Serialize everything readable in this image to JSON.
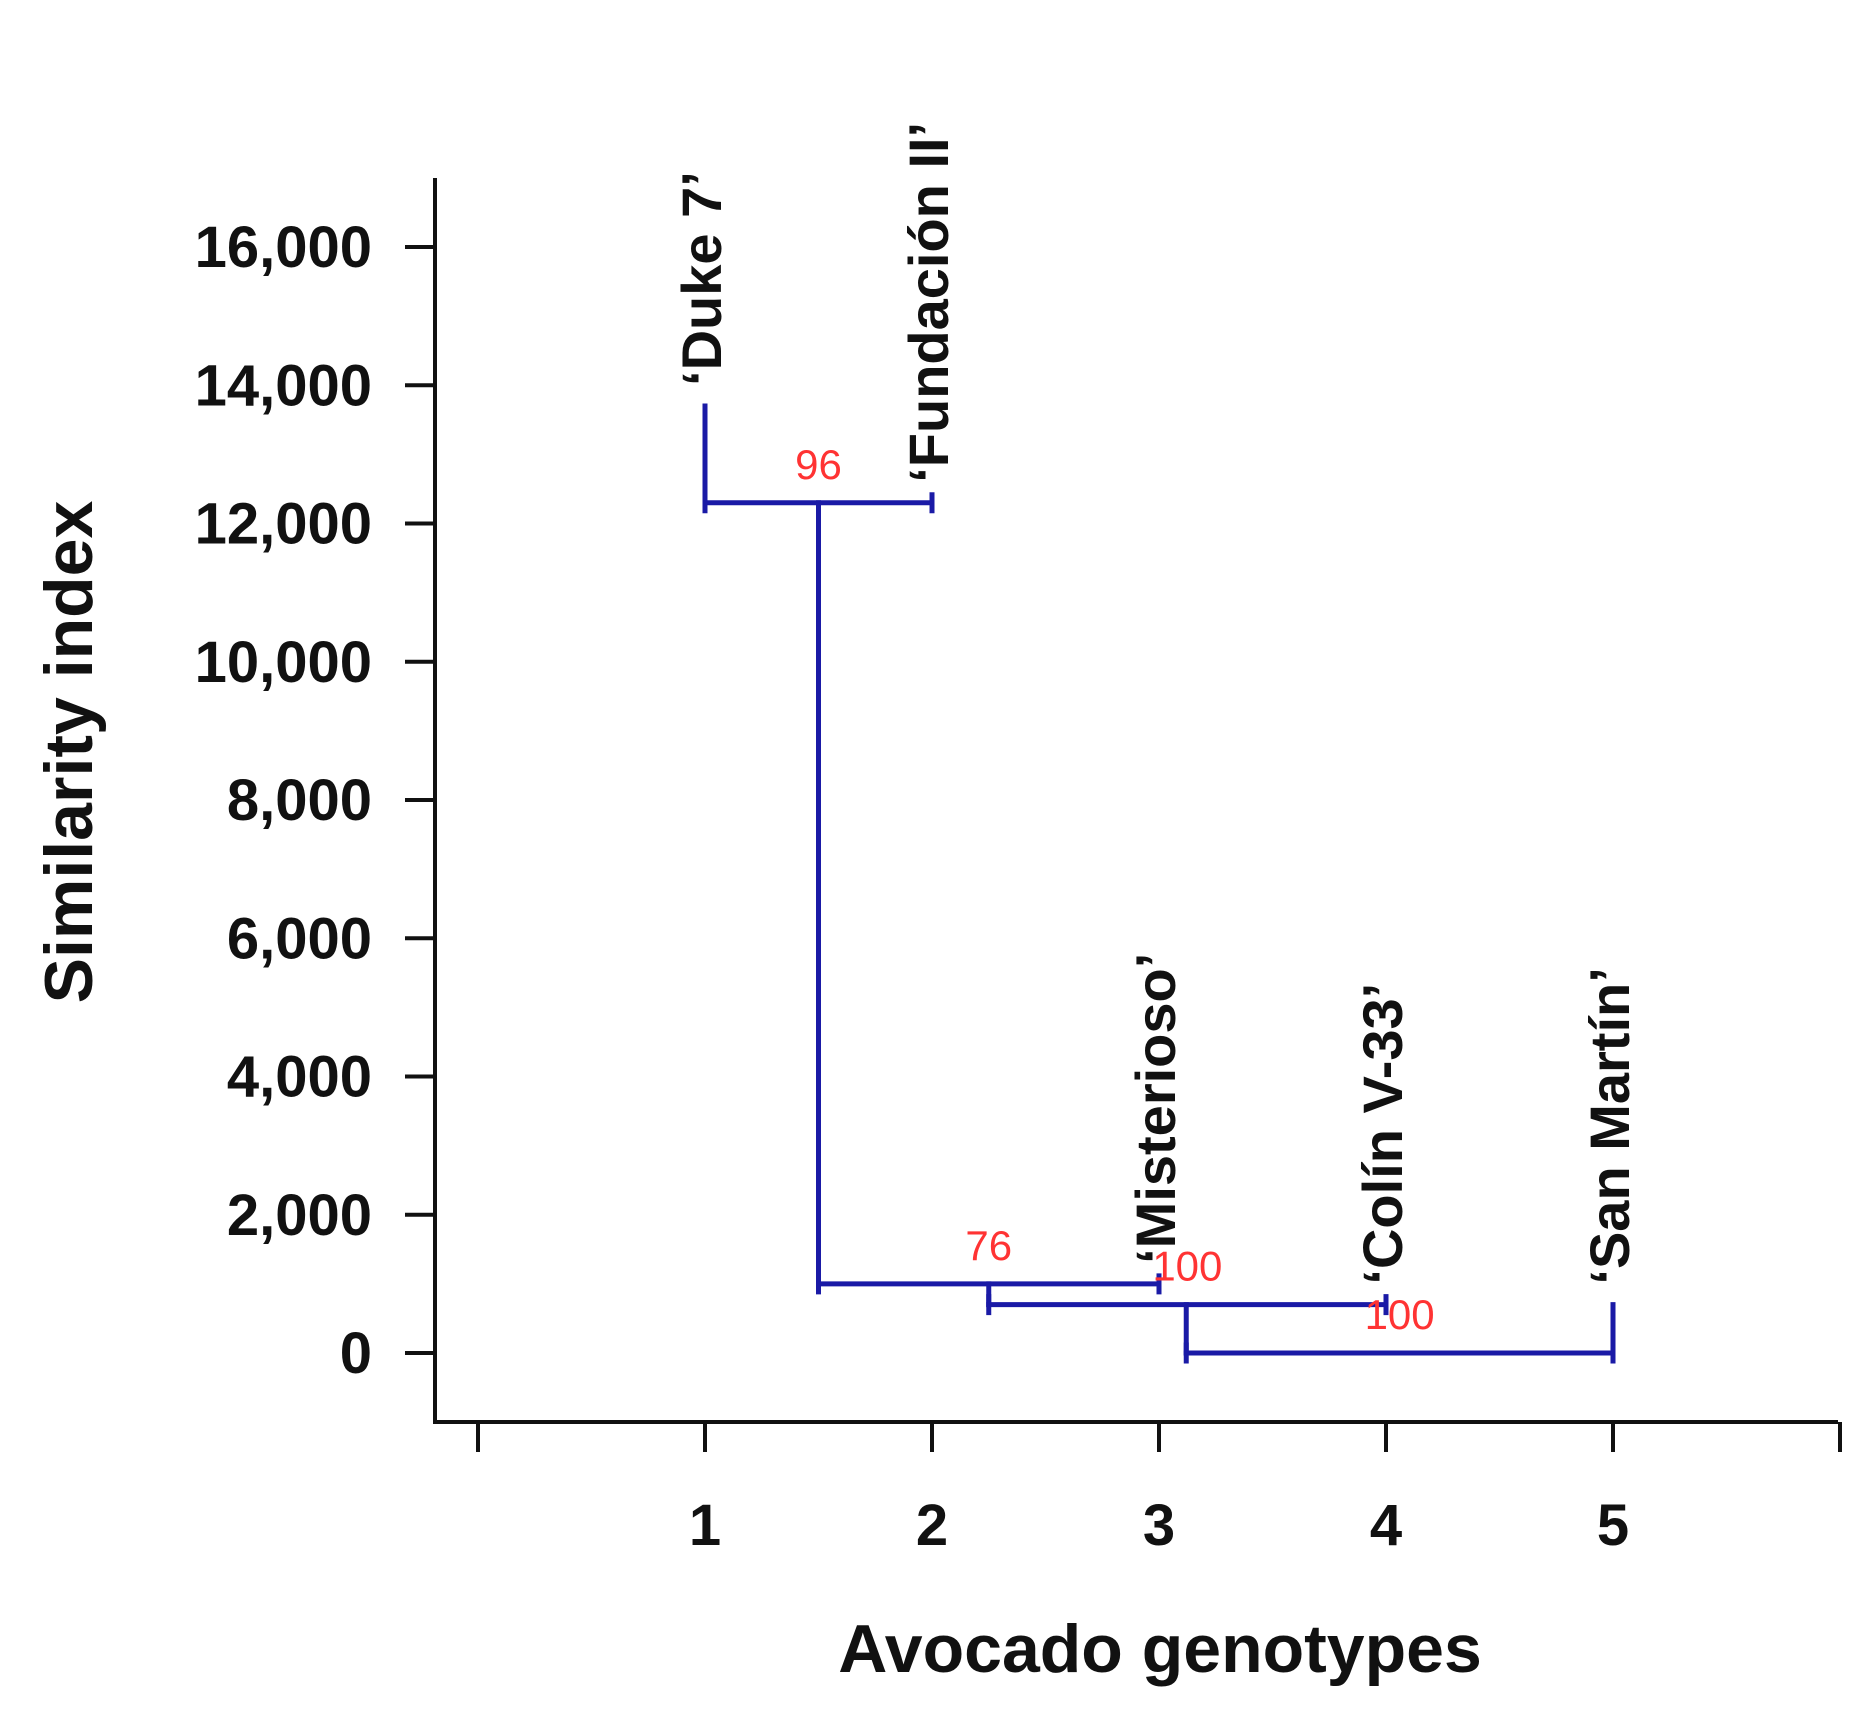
{
  "chart_data": {
    "type": "dendrogram",
    "xlabel": "Avocado genotypes",
    "ylabel": "Similarity index",
    "y_ticks": [
      0,
      2000,
      4000,
      6000,
      8000,
      10000,
      12000,
      14000,
      16000
    ],
    "y_tick_labels": [
      "0",
      "2,000",
      "4,000",
      "6,000",
      "8,000",
      "10,000",
      "12,000",
      "14,000",
      "16,000"
    ],
    "x_ticks": [
      1,
      2,
      3,
      4,
      5
    ],
    "x_tick_labels": [
      "1",
      "2",
      "3",
      "4",
      "5"
    ],
    "xlim": [
      0,
      6
    ],
    "ylim": [
      -1000,
      17000
    ],
    "leaves": [
      {
        "position": 1,
        "label": "‘Duke 7’",
        "top": 13700
      },
      {
        "position": 2,
        "label": "‘Fundación II’",
        "top": 12300
      },
      {
        "position": 3,
        "label": "‘Misterioso’",
        "top": 1000
      },
      {
        "position": 4,
        "label": "‘Colín V-33’",
        "top": 700
      },
      {
        "position": 5,
        "label": "‘San Martín’",
        "top": 700
      }
    ],
    "merges": [
      {
        "left_x": 1.0,
        "right_x": 2.0,
        "height": 12300,
        "parent_x": 1.5,
        "support": "96"
      },
      {
        "left_x": 1.5,
        "right_x": 3.0,
        "height": 1000,
        "parent_x": 2.25,
        "support": "76"
      },
      {
        "left_x": 2.25,
        "right_x": 4.0,
        "height": 700,
        "parent_x": 3.12,
        "support": "100"
      },
      {
        "left_x": 3.12,
        "right_x": 5.0,
        "height": 0,
        "parent_x": null,
        "support": "100"
      }
    ],
    "colors": {
      "branch": "#1a1aa6",
      "support": "#ff3333",
      "text": "#111111"
    }
  }
}
